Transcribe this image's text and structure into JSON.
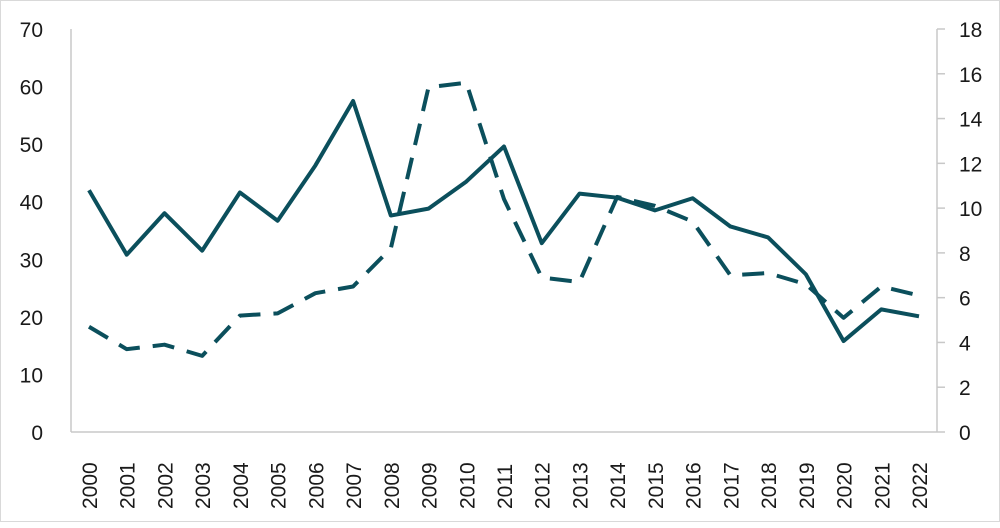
{
  "chart_data": {
    "type": "line",
    "title": "",
    "xlabel": "",
    "ylabel": "",
    "y2label": "",
    "categories": [
      "2000",
      "2001",
      "2002",
      "2003",
      "2004",
      "2005",
      "2006",
      "2007",
      "2008",
      "2009",
      "2010",
      "2011",
      "2012",
      "2013",
      "2014",
      "2015",
      "2016",
      "2017",
      "2018",
      "2019",
      "2020",
      "2021",
      "2022"
    ],
    "ylim": [
      0,
      70
    ],
    "yticks": [
      "0",
      "10",
      "20",
      "30",
      "40",
      "50",
      "60",
      "70"
    ],
    "y2lim": [
      0,
      18
    ],
    "y2ticks": [
      "0",
      "2",
      "4",
      "6",
      "8",
      "10",
      "12",
      "14",
      "16",
      "18"
    ],
    "grid": false,
    "legend": "none",
    "series": [
      {
        "axis": "left",
        "style": "solid",
        "color": "#0b4f5c",
        "values": [
          42,
          30.8,
          38,
          31.5,
          41.6,
          36.7,
          46.3,
          57.5,
          37.6,
          38.8,
          43.5,
          49.6,
          32.8,
          41.4,
          40.7,
          38.5,
          40.6,
          35.7,
          33.8,
          27.4,
          15.8,
          21.3,
          20.1
        ]
      },
      {
        "axis": "right",
        "style": "dashed",
        "color": "#0b4f5c",
        "values": [
          4.7,
          3.7,
          3.9,
          3.4,
          5.2,
          5.3,
          6.2,
          6.5,
          8.2,
          15.4,
          15.6,
          10.4,
          6.9,
          6.7,
          10.5,
          10.1,
          9.4,
          7.0,
          7.1,
          6.6,
          5.1,
          6.5,
          6.1
        ]
      }
    ]
  }
}
